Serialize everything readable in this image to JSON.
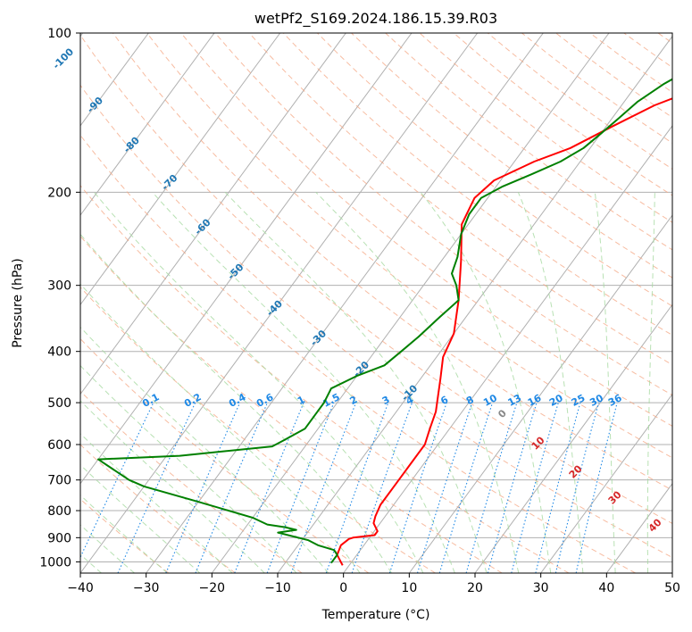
{
  "chart_data": {
    "type": "line",
    "title": "wetPf2_S169.2024.186.15.39.R03",
    "xlabel": "Temperature (°C)",
    "ylabel": "Pressure (hPa)",
    "xlim": [
      -40,
      50
    ],
    "ylim": [
      1050,
      100
    ],
    "y_scale": "log",
    "x_ticks": [
      -40,
      -30,
      -20,
      -10,
      0,
      10,
      20,
      30,
      40,
      50
    ],
    "y_ticks": [
      100,
      200,
      300,
      400,
      500,
      600,
      700,
      800,
      900,
      1000
    ],
    "grid": true,
    "series": [
      {
        "type": "line",
        "color": "#ff0000",
        "points": [
          [
            -1,
            1015
          ],
          [
            -3,
            970
          ],
          [
            -3.5,
            930
          ],
          [
            -3,
            905
          ],
          [
            -2.5,
            900
          ],
          [
            0.5,
            890
          ],
          [
            0.5,
            875
          ],
          [
            -1,
            845
          ],
          [
            -1.5,
            820
          ],
          [
            -2,
            780
          ],
          [
            -2,
            700
          ],
          [
            -2,
            650
          ],
          [
            -2,
            600
          ],
          [
            -3,
            560
          ],
          [
            -4,
            520
          ],
          [
            -7,
            450
          ],
          [
            -9,
            410
          ],
          [
            -10,
            370
          ],
          [
            -13,
            320
          ],
          [
            -17,
            270
          ],
          [
            -21,
            230
          ],
          [
            -22,
            205
          ],
          [
            -21,
            190
          ],
          [
            -17,
            175
          ],
          [
            -13,
            165
          ],
          [
            -9,
            150
          ],
          [
            -5,
            137
          ],
          [
            1,
            125
          ],
          [
            4,
            115
          ],
          [
            6,
            105
          ],
          [
            6.3,
            100
          ]
        ]
      },
      {
        "type": "line",
        "color": "#008000",
        "points": [
          [
            -3,
            1005
          ],
          [
            -3,
            970
          ],
          [
            -4,
            950
          ],
          [
            -7,
            930
          ],
          [
            -9,
            910
          ],
          [
            -14.5,
            880
          ],
          [
            -12,
            870
          ],
          [
            -14,
            860
          ],
          [
            -17,
            850
          ],
          [
            -20,
            825
          ],
          [
            -30,
            770
          ],
          [
            -40,
            720
          ],
          [
            -43,
            700
          ],
          [
            -50,
            640
          ],
          [
            -38,
            630
          ],
          [
            -25,
            605
          ],
          [
            -24,
            590
          ],
          [
            -22,
            560
          ],
          [
            -22,
            520
          ],
          [
            -22,
            500
          ],
          [
            -22.5,
            470
          ],
          [
            -20,
            445
          ],
          [
            -17,
            425
          ],
          [
            -16,
            400
          ],
          [
            -15,
            375
          ],
          [
            -14,
            345
          ],
          [
            -13,
            320
          ],
          [
            -15,
            300
          ],
          [
            -17,
            285
          ],
          [
            -18,
            265
          ],
          [
            -20,
            240
          ],
          [
            -21,
            220
          ],
          [
            -21,
            205
          ],
          [
            -19,
            195
          ],
          [
            -16,
            185
          ],
          [
            -13,
            175
          ],
          [
            -11,
            165
          ],
          [
            -10,
            155
          ],
          [
            -9,
            145
          ],
          [
            -8,
            135
          ],
          [
            -6,
            125
          ],
          [
            -3,
            115
          ],
          [
            1,
            105
          ],
          [
            1.5,
            100
          ]
        ]
      }
    ],
    "isotherm_labels": [
      "-100",
      "-90",
      "-80",
      "-70",
      "-60",
      "-50",
      "-40",
      "-30",
      "-20",
      "-10"
    ],
    "mixing_ratio_labels": [
      "0.1",
      "0.2",
      "0.4",
      "0.6",
      "1",
      "1.5",
      "2",
      "3",
      "4",
      "6",
      "8",
      "10",
      "13",
      "16",
      "20",
      "25",
      "30",
      "36"
    ],
    "moist_adiabat_labels": [
      "0",
      "10",
      "20",
      "30",
      "40"
    ],
    "colors": {
      "temperature": "#ff0000",
      "dewpoint": "#008000",
      "isotherm_grid": "#b0b0b0",
      "dry_adiabat": "#f4a582",
      "moist_adiabat": "#a6d9a0",
      "mixing_ratio": "#1e88e5",
      "isotherm_label": "#1f77b4",
      "moist_label": "#d62728"
    }
  }
}
